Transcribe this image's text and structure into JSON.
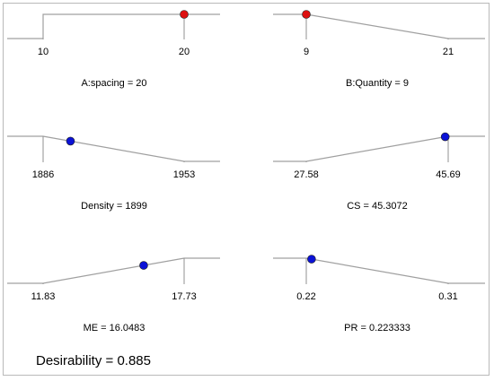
{
  "chart_data": [
    {
      "type": "line",
      "name": "A:spacing",
      "role": "factor",
      "ticks": [
        "10",
        "20"
      ],
      "shape": "ramp-up",
      "dot_fraction": 1.0,
      "label": "A:spacing = 20"
    },
    {
      "type": "line",
      "name": "B:Quantity",
      "role": "factor",
      "ticks": [
        "9",
        "21"
      ],
      "shape": "ramp-down",
      "dot_fraction": 0.0,
      "label": "B:Quantity = 9"
    },
    {
      "type": "line",
      "name": "Density",
      "role": "response",
      "ticks": [
        "1886",
        "1953"
      ],
      "shape": "ramp-down",
      "dot_fraction": 0.194,
      "label": "Density = 1899"
    },
    {
      "type": "line",
      "name": "CS",
      "role": "response",
      "ticks": [
        "27.58",
        "45.69"
      ],
      "shape": "ramp-up",
      "dot_fraction": 0.979,
      "label": "CS = 45.3072"
    },
    {
      "type": "line",
      "name": "ME",
      "role": "response",
      "ticks": [
        "11.83",
        "17.73"
      ],
      "shape": "ramp-up",
      "dot_fraction": 0.713,
      "label": "ME = 16.0483"
    },
    {
      "type": "line",
      "name": "PR",
      "role": "response",
      "ticks": [
        "0.22",
        "0.31"
      ],
      "shape": "ramp-down",
      "dot_fraction": 0.037,
      "label": "PR = 0.223333"
    }
  ],
  "desirability_label": "Desirability = 0.885",
  "colors": {
    "factor_dot": "#dd1111",
    "response_dot": "#0b12d6",
    "line": "#a0a0a0",
    "tick_line": "#909090"
  }
}
